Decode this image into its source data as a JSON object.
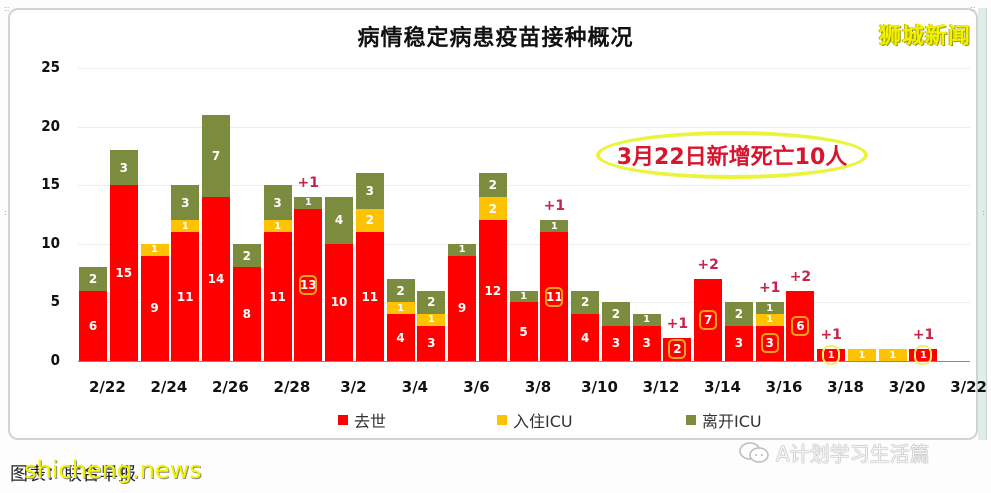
{
  "brand": "狮城新闻",
  "callout": "3月22日新增死亡10人",
  "footer": {
    "caption": "图表：联合早报",
    "watermark": "shicheng.news",
    "account": "A计划学习生活篇"
  },
  "legend": [
    {
      "label": "去世",
      "color": "#ff0000"
    },
    {
      "label": "入住ICU",
      "color": "#fdc200"
    },
    {
      "label": "离开ICU",
      "color": "#7b8c3e"
    }
  ],
  "chart_data": {
    "type": "bar",
    "stacked": true,
    "title": "病情稳定病患疫苗接种概况",
    "xlabel": "",
    "ylabel": "",
    "ylim": [
      0,
      25
    ],
    "yticks": [
      0,
      5,
      10,
      15,
      20,
      25
    ],
    "grid": true,
    "legend_position": "bottom",
    "categories": [
      "2/22",
      "2/23",
      "2/24",
      "2/25",
      "2/26",
      "2/27",
      "2/28",
      "3/1",
      "3/2",
      "3/3",
      "3/4",
      "3/5",
      "3/6",
      "3/7",
      "3/8",
      "3/9",
      "3/10",
      "3/11",
      "3/12",
      "3/13",
      "3/14",
      "3/15",
      "3/16",
      "3/17",
      "3/18",
      "3/19",
      "3/20",
      "3/21",
      "3/22"
    ],
    "xtick_labels": [
      "2/22",
      "2/24",
      "2/26",
      "2/28",
      "3/2",
      "3/4",
      "3/6",
      "3/8",
      "3/10",
      "3/12",
      "3/14",
      "3/16",
      "3/18",
      "3/20",
      "3/22"
    ],
    "series": [
      {
        "name": "去世",
        "color": "#ff0000",
        "values": [
          6,
          15,
          9,
          11,
          14,
          8,
          11,
          13,
          10,
          11,
          4,
          3,
          9,
          12,
          5,
          11,
          4,
          3,
          3,
          2,
          7,
          3,
          3,
          6,
          1,
          0,
          0,
          1,
          0
        ]
      },
      {
        "name": "入住ICU",
        "color": "#fdc200",
        "values": [
          0,
          0,
          1,
          1,
          0,
          0,
          1,
          0,
          0,
          2,
          1,
          1,
          0,
          2,
          0,
          0,
          0,
          0,
          0,
          0,
          0,
          0,
          1,
          0,
          0,
          1,
          1,
          0,
          0
        ]
      },
      {
        "name": "离开ICU",
        "color": "#7b8c3e",
        "values": [
          2,
          3,
          0,
          3,
          7,
          2,
          3,
          1,
          4,
          3,
          2,
          2,
          1,
          2,
          1,
          1,
          2,
          2,
          1,
          0,
          0,
          2,
          1,
          0,
          0,
          0,
          0,
          0,
          0
        ]
      }
    ],
    "annotations": [
      {
        "category": "3/1",
        "text": "+1",
        "circled_value": 13
      },
      {
        "category": "3/9",
        "text": "+1",
        "circled_value": 11
      },
      {
        "category": "3/13",
        "text": "+1",
        "circled_value": 2
      },
      {
        "category": "3/14",
        "text": "+2",
        "circled_value": 7
      },
      {
        "category": "3/16",
        "text": "+1",
        "circled_value": 3
      },
      {
        "category": "3/17",
        "text": "+2",
        "circled_value": 6
      },
      {
        "category": "3/18",
        "text": "+1",
        "circled_value": 1
      },
      {
        "category": "3/21",
        "text": "+1",
        "circled_value": 1
      }
    ]
  }
}
